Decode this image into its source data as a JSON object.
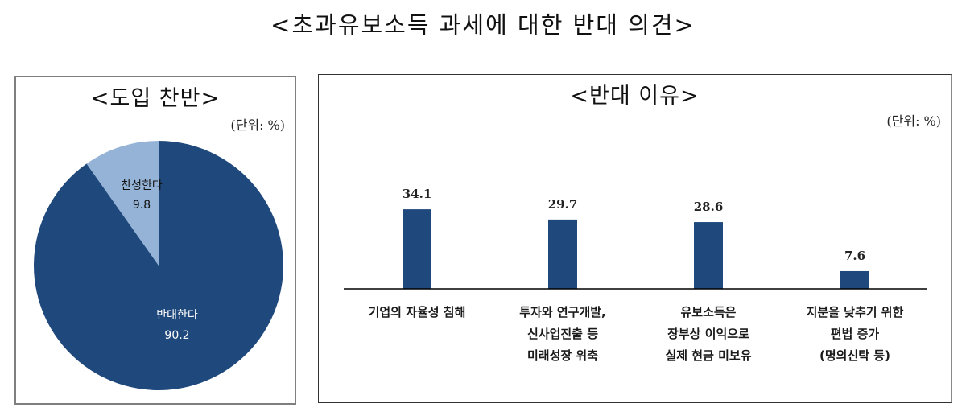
{
  "title": "<초과유보소득 과세에 대한 반대 의견>",
  "left_panel": {
    "title": "<도입 찬반>",
    "unit": "(단위: %)"
  },
  "right_panel": {
    "title": "<반대 이유>",
    "unit": "(단위: %)"
  },
  "colors": {
    "dark_blue": "#1f497d",
    "light_blue": "#95b3d7",
    "axis": "#000000"
  },
  "chart_data": [
    {
      "type": "pie",
      "title": "<도입 찬반>",
      "unit": "%",
      "categories": [
        "찬성한다",
        "반대한다"
      ],
      "values": [
        9.8,
        90.2
      ],
      "colors": [
        "#95b3d7",
        "#1f497d"
      ],
      "labels": [
        {
          "name": "찬성한다",
          "value": "9.8"
        },
        {
          "name": "반대한다",
          "value": "90.2"
        }
      ]
    },
    {
      "type": "bar",
      "title": "<반대 이유>",
      "unit": "%",
      "categories": [
        "기업의 자율성 침해",
        "투자와 연구개발, 신사업진출 등 미래성장 위축",
        "유보소득은 장부상 이익으로 실제 현금 미보유",
        "지분을 낮추기 위한 편법 증가 (명의신탁 등)"
      ],
      "category_lines": [
        [
          "기업의 자율성 침해"
        ],
        [
          "투자와 연구개발,",
          "신사업진출 등",
          "미래성장 위축"
        ],
        [
          "유보소득은",
          "장부상 이익으로",
          "실제 현금 미보유"
        ],
        [
          "지분을 낮추기 위한",
          "편법 증가",
          "(명의신탁 등)"
        ]
      ],
      "values": [
        34.1,
        29.7,
        28.6,
        7.6
      ],
      "value_labels": [
        "34.1",
        "29.7",
        "28.6",
        "7.6"
      ],
      "color": "#1f497d",
      "xlabel": "",
      "ylabel": "",
      "grid": false,
      "legend": "none"
    }
  ]
}
